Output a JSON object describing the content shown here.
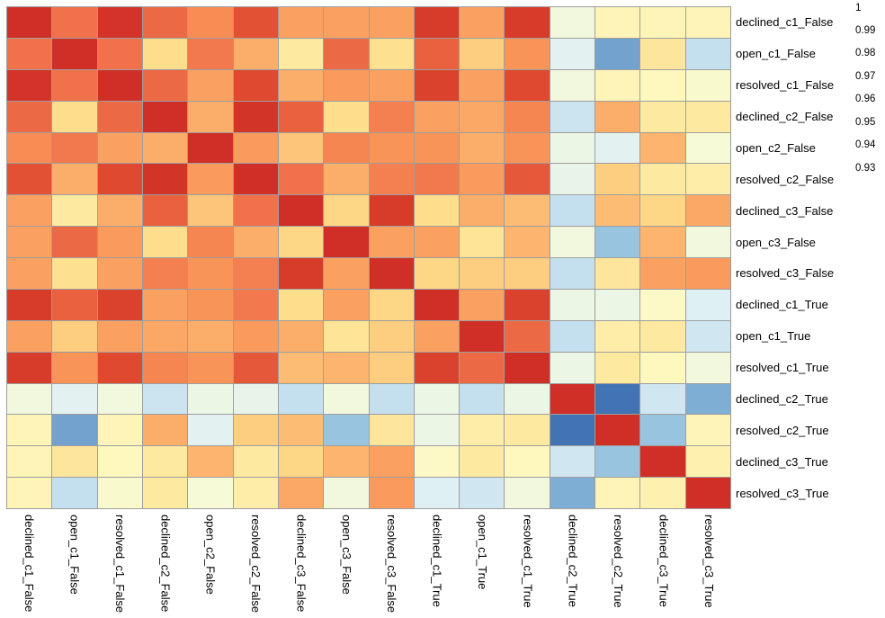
{
  "figure": {
    "background": "#ffffff",
    "grid_line_color": "#9e9e9e",
    "label_color": "#000000"
  },
  "chart_data": {
    "type": "heatmap",
    "title": "",
    "xlabel": "",
    "ylabel": "",
    "legend_position": "right-colorbar",
    "grid": true,
    "labels": [
      "declined_c1_False",
      "open_c1_False",
      "resolved_c1_False",
      "declined_c2_False",
      "open_c2_False",
      "resolved_c2_False",
      "declined_c3_False",
      "open_c3_False",
      "resolved_c3_False",
      "declined_c1_True",
      "open_c1_True",
      "resolved_c1_True",
      "declined_c2_True",
      "resolved_c2_True",
      "declined_c3_True",
      "resolved_c3_True"
    ],
    "matrix": [
      [
        1.0,
        0.985,
        0.994,
        0.986,
        0.981,
        0.989,
        0.978,
        0.978,
        0.978,
        0.992,
        0.978,
        0.992,
        0.958,
        0.963,
        0.963,
        0.963
      ],
      [
        0.985,
        1.0,
        0.985,
        0.97,
        0.984,
        0.976,
        0.966,
        0.986,
        0.969,
        0.987,
        0.972,
        0.98,
        0.955,
        0.937,
        0.967,
        0.949
      ],
      [
        0.994,
        0.985,
        1.0,
        0.986,
        0.978,
        0.99,
        0.976,
        0.979,
        0.978,
        0.991,
        0.978,
        0.99,
        0.958,
        0.963,
        0.962,
        0.96
      ],
      [
        0.986,
        0.97,
        0.986,
        1.0,
        0.976,
        0.993,
        0.987,
        0.97,
        0.983,
        0.978,
        0.977,
        0.982,
        0.95,
        0.976,
        0.966,
        0.966
      ],
      [
        0.981,
        0.984,
        0.978,
        0.976,
        1.0,
        0.979,
        0.973,
        0.982,
        0.98,
        0.98,
        0.976,
        0.98,
        0.957,
        0.955,
        0.975,
        0.959
      ],
      [
        0.989,
        0.976,
        0.99,
        0.993,
        0.979,
        1.0,
        0.985,
        0.976,
        0.983,
        0.984,
        0.979,
        0.988,
        0.956,
        0.972,
        0.966,
        0.965
      ],
      [
        0.978,
        0.966,
        0.976,
        0.987,
        0.973,
        0.985,
        1.0,
        0.971,
        0.992,
        0.97,
        0.976,
        0.974,
        0.949,
        0.974,
        0.971,
        0.977
      ],
      [
        0.978,
        0.986,
        0.979,
        0.97,
        0.982,
        0.976,
        0.971,
        1.0,
        0.978,
        0.978,
        0.968,
        0.975,
        0.958,
        0.943,
        0.975,
        0.958
      ],
      [
        0.978,
        0.969,
        0.978,
        0.983,
        0.98,
        0.983,
        0.992,
        0.978,
        1.0,
        0.971,
        0.972,
        0.972,
        0.949,
        0.967,
        0.978,
        0.979
      ],
      [
        0.992,
        0.987,
        0.991,
        0.978,
        0.98,
        0.984,
        0.97,
        0.978,
        0.971,
        1.0,
        0.978,
        0.991,
        0.957,
        0.957,
        0.961,
        0.954
      ],
      [
        0.978,
        0.972,
        0.978,
        0.977,
        0.976,
        0.979,
        0.976,
        0.968,
        0.972,
        0.978,
        1.0,
        0.986,
        0.949,
        0.965,
        0.966,
        0.951
      ],
      [
        0.992,
        0.98,
        0.99,
        0.982,
        0.98,
        0.988,
        0.974,
        0.975,
        0.972,
        0.991,
        0.986,
        1.0,
        0.957,
        0.966,
        0.962,
        0.958
      ],
      [
        0.958,
        0.955,
        0.958,
        0.95,
        0.957,
        0.956,
        0.949,
        0.958,
        0.949,
        0.957,
        0.949,
        0.957,
        1.0,
        0.93,
        0.951,
        0.939
      ],
      [
        0.963,
        0.937,
        0.963,
        0.976,
        0.955,
        0.972,
        0.974,
        0.943,
        0.967,
        0.957,
        0.965,
        0.966,
        0.93,
        1.0,
        0.943,
        0.963
      ],
      [
        0.963,
        0.967,
        0.962,
        0.966,
        0.975,
        0.966,
        0.971,
        0.975,
        0.978,
        0.961,
        0.966,
        0.962,
        0.951,
        0.943,
        1.0,
        0.964
      ],
      [
        0.963,
        0.949,
        0.96,
        0.966,
        0.959,
        0.965,
        0.977,
        0.958,
        0.979,
        0.954,
        0.951,
        0.958,
        0.939,
        0.963,
        0.964,
        1.0
      ]
    ],
    "colorbar": {
      "tick_labels": [
        "1",
        "0.99",
        "0.98",
        "0.97",
        "0.96",
        "0.95",
        "0.94",
        "0.93"
      ],
      "tick_values": [
        1,
        0.99,
        0.98,
        0.97,
        0.96,
        0.95,
        0.94,
        0.93
      ],
      "vmin": 0.926,
      "vmax": 1.001
    },
    "colormap": {
      "name": "RdYlBu_r",
      "anchors": [
        [
          1.0,
          "#d02f27"
        ],
        [
          0.993,
          "#d33428"
        ],
        [
          0.99,
          "#de492f"
        ],
        [
          0.985,
          "#f0714a"
        ],
        [
          0.98,
          "#f99458"
        ],
        [
          0.975,
          "#fcb46e"
        ],
        [
          0.97,
          "#fdde8c"
        ],
        [
          0.966,
          "#fde9a0"
        ],
        [
          0.962,
          "#fef8bf"
        ],
        [
          0.959,
          "#f7fad6"
        ],
        [
          0.957,
          "#ecf6e5"
        ],
        [
          0.954,
          "#dff0f5"
        ],
        [
          0.95,
          "#cbe4f0"
        ],
        [
          0.945,
          "#a6cee4"
        ],
        [
          0.94,
          "#86b4d8"
        ],
        [
          0.935,
          "#6496c6"
        ],
        [
          0.93,
          "#4273b3"
        ]
      ]
    }
  }
}
